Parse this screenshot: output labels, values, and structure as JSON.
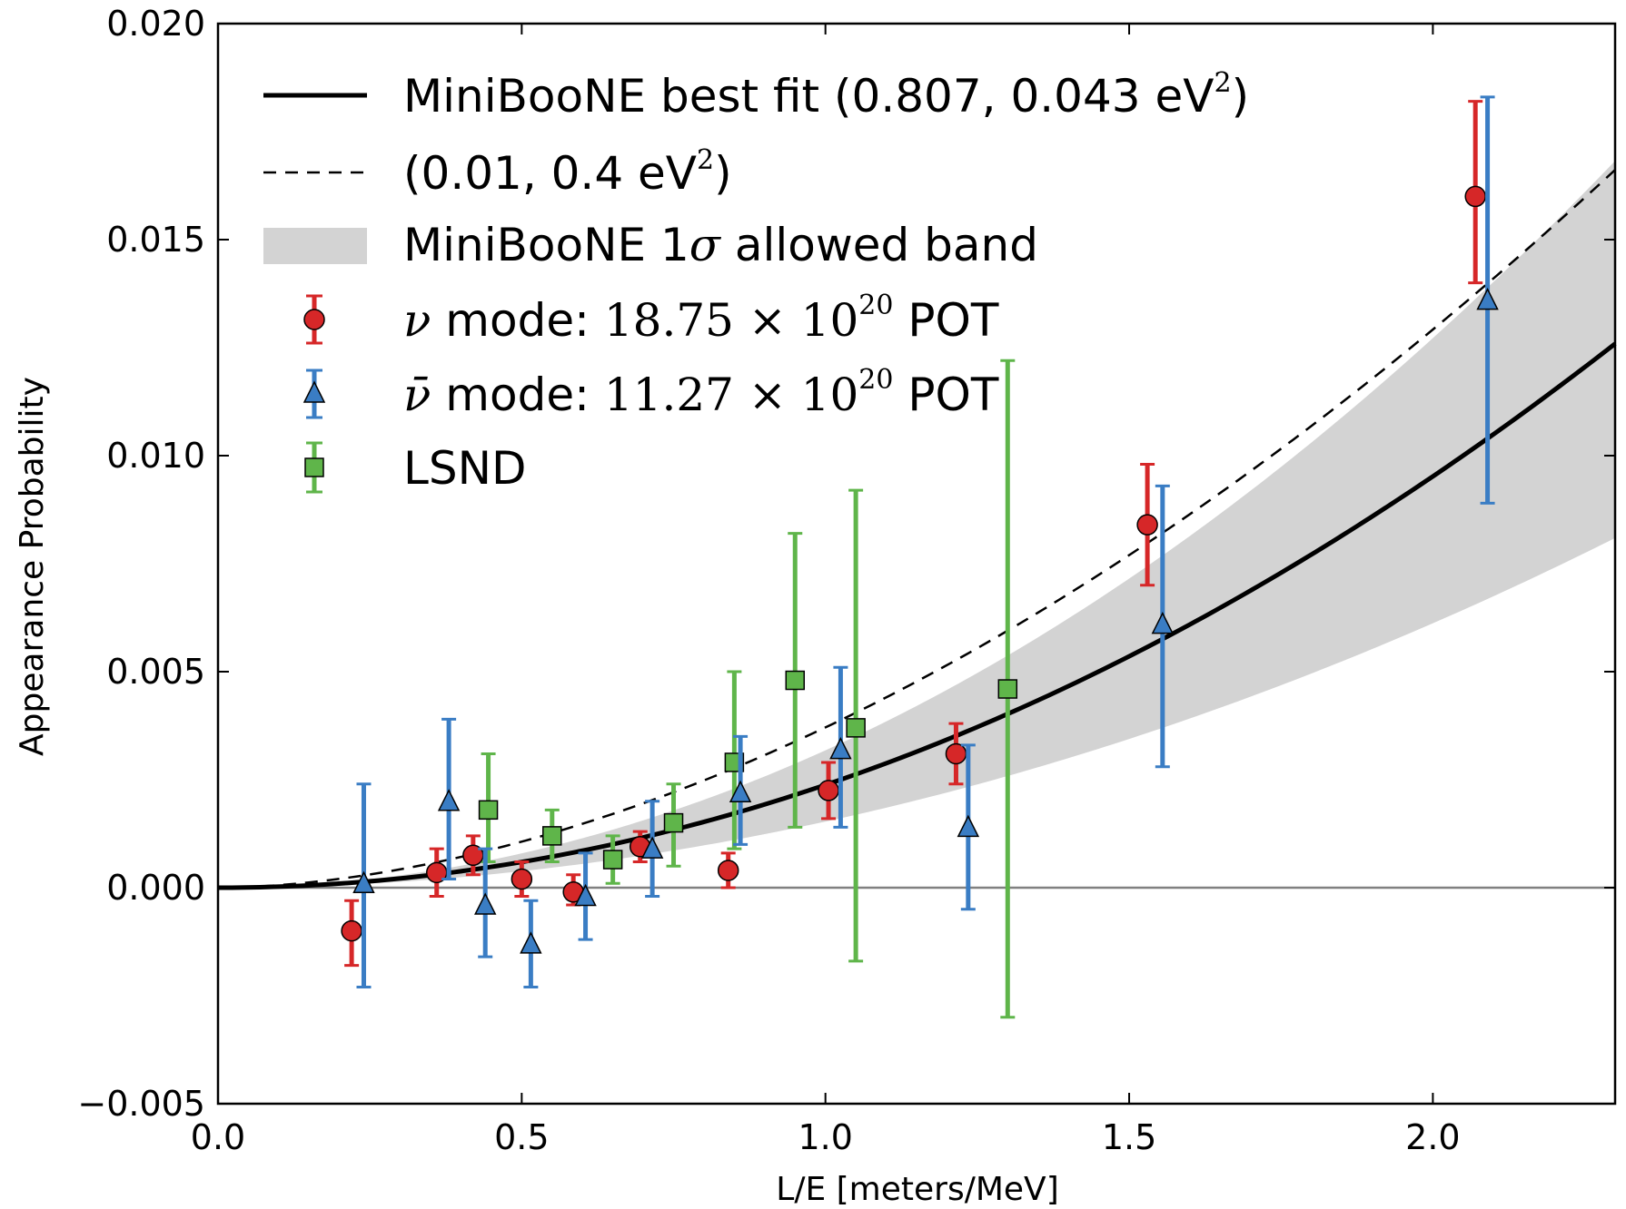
{
  "chart_data": {
    "type": "scatter",
    "xlabel": "L/E [meters/MeV]",
    "ylabel": "Appearance Probability",
    "xlim": [
      0.0,
      2.3
    ],
    "ylim": [
      -0.005,
      0.02
    ],
    "xticks": [
      0.0,
      0.5,
      1.0,
      1.5,
      2.0
    ],
    "xtick_labels": [
      "0.0",
      "0.5",
      "1.0",
      "1.5",
      "2.0"
    ],
    "yticks": [
      -0.005,
      0.0,
      0.005,
      0.01,
      0.015,
      0.02
    ],
    "ytick_labels": [
      "−0.005",
      "0.000",
      "0.005",
      "0.010",
      "0.015",
      "0.020"
    ],
    "zero_line": 0.0,
    "colors": {
      "nu": "#d62728",
      "nubar": "#3a7dc4",
      "lsnd": "#5fb54a",
      "band": "#d3d3d3",
      "fit": "#000000"
    },
    "legend": {
      "location": "top-left",
      "entries": {
        "best_fit": {
          "main": "MiniBooNE best fit (0.807, 0.043 eV",
          "sup": "2",
          "close": ")"
        },
        "alt_fit": {
          "main": "(0.01, 0.4 eV",
          "sup": "2",
          "close": ")"
        },
        "band": {
          "pre": "MiniBooNE 1",
          "sigma": "σ",
          "post": " allowed band"
        },
        "nu": {
          "sym": "ν",
          "mid": " mode: ",
          "num": "18.75 × 10",
          "sup": "20",
          "post": " POT"
        },
        "nubar": {
          "sym": "ν̄",
          "mid": " mode: ",
          "num": "11.27 × 10",
          "sup": "20",
          "post": " POT"
        },
        "lsnd": {
          "label": "LSND"
        }
      }
    },
    "best_fit_curve": {
      "coef": 0.00238,
      "power": 2
    },
    "alt_fit_curve": {
      "coef": 0.00371,
      "power": 1.8
    },
    "band": {
      "lower_coef": 0.00153,
      "lower_power": 2,
      "upper_coef": 0.00318,
      "upper_power": 2
    },
    "series": [
      {
        "name": "nu_mode",
        "marker": "circle",
        "points": [
          {
            "x": 0.22,
            "y": -0.001,
            "lo": -0.0018,
            "hi": -0.0003
          },
          {
            "x": 0.36,
            "y": 0.00035,
            "lo": -0.0002,
            "hi": 0.0009
          },
          {
            "x": 0.42,
            "y": 0.00075,
            "lo": 0.0003,
            "hi": 0.0012
          },
          {
            "x": 0.5,
            "y": 0.0002,
            "lo": -0.0002,
            "hi": 0.0006
          },
          {
            "x": 0.585,
            "y": -0.0001,
            "lo": -0.0004,
            "hi": 0.0003
          },
          {
            "x": 0.695,
            "y": 0.00095,
            "lo": 0.0006,
            "hi": 0.0013
          },
          {
            "x": 0.84,
            "y": 0.0004,
            "lo": 0.0,
            "hi": 0.0008
          },
          {
            "x": 1.005,
            "y": 0.00225,
            "lo": 0.0016,
            "hi": 0.0029
          },
          {
            "x": 1.215,
            "y": 0.0031,
            "lo": 0.0024,
            "hi": 0.0038
          },
          {
            "x": 1.53,
            "y": 0.0084,
            "lo": 0.007,
            "hi": 0.0098
          },
          {
            "x": 2.07,
            "y": 0.016,
            "lo": 0.014,
            "hi": 0.0182
          }
        ]
      },
      {
        "name": "nubar_mode",
        "marker": "triangle",
        "points": [
          {
            "x": 0.24,
            "y": 0.0001,
            "lo": -0.0023,
            "hi": 0.0024
          },
          {
            "x": 0.38,
            "y": 0.002,
            "lo": 0.0002,
            "hi": 0.0039
          },
          {
            "x": 0.44,
            "y": -0.0004,
            "lo": -0.0016,
            "hi": 0.0009
          },
          {
            "x": 0.515,
            "y": -0.0013,
            "lo": -0.0023,
            "hi": -0.0003
          },
          {
            "x": 0.605,
            "y": -0.0002,
            "lo": -0.0012,
            "hi": 0.0008
          },
          {
            "x": 0.715,
            "y": 0.0009,
            "lo": -0.0002,
            "hi": 0.002
          },
          {
            "x": 0.86,
            "y": 0.0022,
            "lo": 0.001,
            "hi": 0.0035
          },
          {
            "x": 1.025,
            "y": 0.0032,
            "lo": 0.0014,
            "hi": 0.0051
          },
          {
            "x": 1.235,
            "y": 0.0014,
            "lo": -0.0005,
            "hi": 0.0033
          },
          {
            "x": 1.555,
            "y": 0.0061,
            "lo": 0.0028,
            "hi": 0.0093
          },
          {
            "x": 2.09,
            "y": 0.0136,
            "lo": 0.0089,
            "hi": 0.0183
          }
        ]
      },
      {
        "name": "lsnd",
        "marker": "square",
        "points": [
          {
            "x": 0.445,
            "y": 0.0018,
            "lo": 0.0006,
            "hi": 0.0031
          },
          {
            "x": 0.55,
            "y": 0.0012,
            "lo": 0.0006,
            "hi": 0.0018
          },
          {
            "x": 0.65,
            "y": 0.00065,
            "lo": 0.0001,
            "hi": 0.0012
          },
          {
            "x": 0.75,
            "y": 0.0015,
            "lo": 0.0005,
            "hi": 0.0024
          },
          {
            "x": 0.85,
            "y": 0.0029,
            "lo": 0.0009,
            "hi": 0.005
          },
          {
            "x": 0.95,
            "y": 0.0048,
            "lo": 0.0014,
            "hi": 0.0082
          },
          {
            "x": 1.05,
            "y": 0.0037,
            "lo": -0.0017,
            "hi": 0.0092
          },
          {
            "x": 1.3,
            "y": 0.0046,
            "lo": -0.003,
            "hi": 0.0122
          }
        ]
      }
    ]
  }
}
